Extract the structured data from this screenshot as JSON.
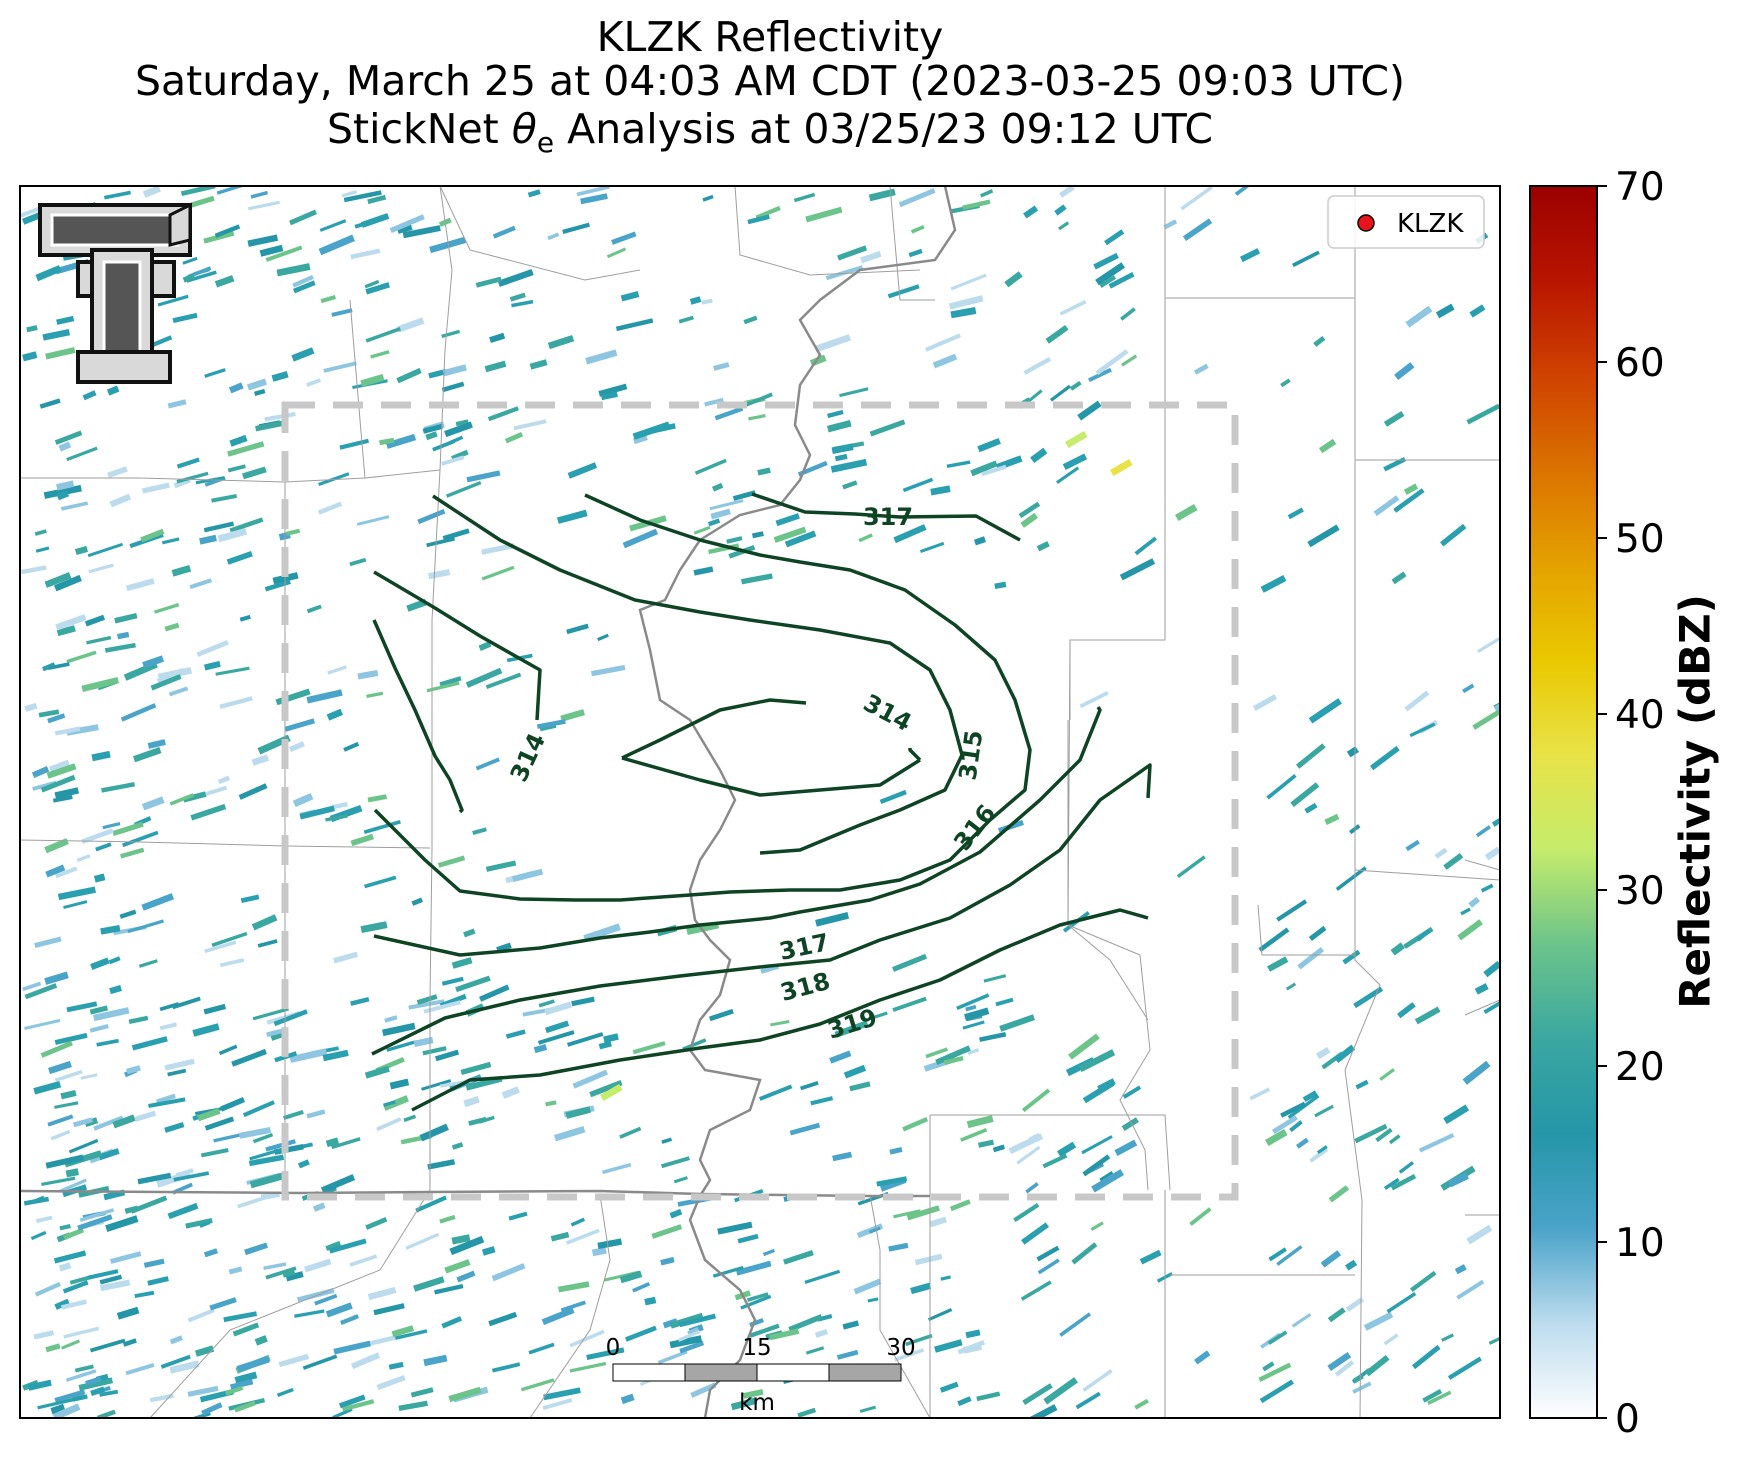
{
  "title": {
    "line1": "KLZK Reflectivity",
    "line2": "Saturday, March 25 at 04:03 AM CDT (2023-03-25 09:03 UTC)",
    "line3_prefix": "StickNet ",
    "line3_symbol": "θ",
    "line3_subscript": "e",
    "line3_suffix": " Analysis at 03/25/23 09:12 UTC"
  },
  "legend": {
    "marker_color": "#e8141b",
    "label": "KLZK"
  },
  "scale_bar": {
    "ticks": [
      "0",
      "15",
      "30"
    ],
    "unit": "km"
  },
  "colorbar": {
    "label": "Reflectivity (dBZ)",
    "ticks": [
      "0",
      "10",
      "20",
      "30",
      "40",
      "50",
      "60",
      "70"
    ],
    "min": 0,
    "max": 70,
    "colors": [
      "#ffffff",
      "#bcdcee",
      "#4aa3c9",
      "#2596a8",
      "#3aa7a0",
      "#6cc48a",
      "#c5ec6b",
      "#e8e347",
      "#e9c800",
      "#e4a100",
      "#db7200",
      "#cf4200",
      "#b81500",
      "#9c0000"
    ]
  },
  "contours": {
    "color": "#0e4424",
    "labels": [
      "317",
      "314",
      "314",
      "315",
      "316",
      "317",
      "318",
      "319"
    ]
  },
  "colors": {
    "study_box": "#c8c8c8",
    "border": "#8a8a8a",
    "county": "#999999",
    "echo_main": "#2a9fb0"
  }
}
